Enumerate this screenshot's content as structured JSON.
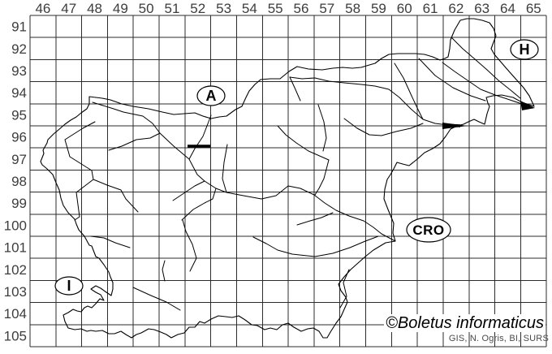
{
  "grid": {
    "column_labels": [
      "46",
      "47",
      "48",
      "49",
      "50",
      "51",
      "52",
      "53",
      "54",
      "55",
      "56",
      "57",
      "58",
      "59",
      "60",
      "61",
      "62",
      "63",
      "64",
      "65"
    ],
    "row_labels": [
      "91",
      "92",
      "93",
      "94",
      "95",
      "96",
      "97",
      "98",
      "99",
      "100",
      "101",
      "102",
      "103",
      "104",
      "105"
    ]
  },
  "countries": [
    {
      "id": "austria",
      "label": "A"
    },
    {
      "id": "hungary",
      "label": "H"
    },
    {
      "id": "croatia",
      "label": "CRO"
    },
    {
      "id": "italy",
      "label": "I"
    }
  ],
  "footer": {
    "copyright": "©Boletus informaticus",
    "attribution": "GIS, N. Ogris, BI, SURS"
  },
  "colors": {
    "grid_line": "#2b2b2b",
    "map_line": "#000000",
    "label_text": "#3d3d3d",
    "attribution_text": "#4a4a4a",
    "background": "#ffffff"
  }
}
